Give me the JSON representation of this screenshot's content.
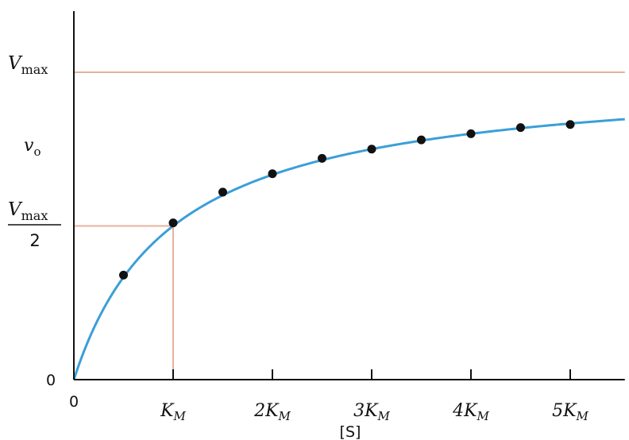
{
  "chart_data": {
    "type": "line",
    "xlabel": "[S]",
    "ylabel": "v",
    "ylabel_sub": "o",
    "x_tick_labels": [
      {
        "value": 0,
        "main": "0",
        "sub": ""
      },
      {
        "value": 1,
        "main": "K",
        "sub": "M"
      },
      {
        "value": 2,
        "main": "2K",
        "sub": "M"
      },
      {
        "value": 3,
        "main": "3K",
        "sub": "M"
      },
      {
        "value": 4,
        "main": "4K",
        "sub": "M"
      },
      {
        "value": 5,
        "main": "5K",
        "sub": "M"
      }
    ],
    "y_tick_labels": {
      "zero": "0",
      "vmax": {
        "main": "V",
        "sub": "max"
      },
      "half_vmax": {
        "main": "V",
        "sub": "max",
        "denominator": "2"
      }
    },
    "xlim": [
      0,
      5.55
    ],
    "ylim": [
      0,
      1.32
    ],
    "vmax": 1,
    "km": 1,
    "series": [
      {
        "x": [
          0.5,
          1,
          1.5,
          2,
          2.5,
          3,
          3.5,
          4,
          4.5,
          5
        ],
        "y": [
          0.34,
          0.51,
          0.61,
          0.67,
          0.72,
          0.75,
          0.78,
          0.8,
          0.82,
          0.83
        ]
      }
    ],
    "colors": {
      "curve": "#3b9fd8",
      "points": "#111111",
      "reference_lines": "#e8b19c",
      "axes": "#111111"
    },
    "grid": false
  }
}
